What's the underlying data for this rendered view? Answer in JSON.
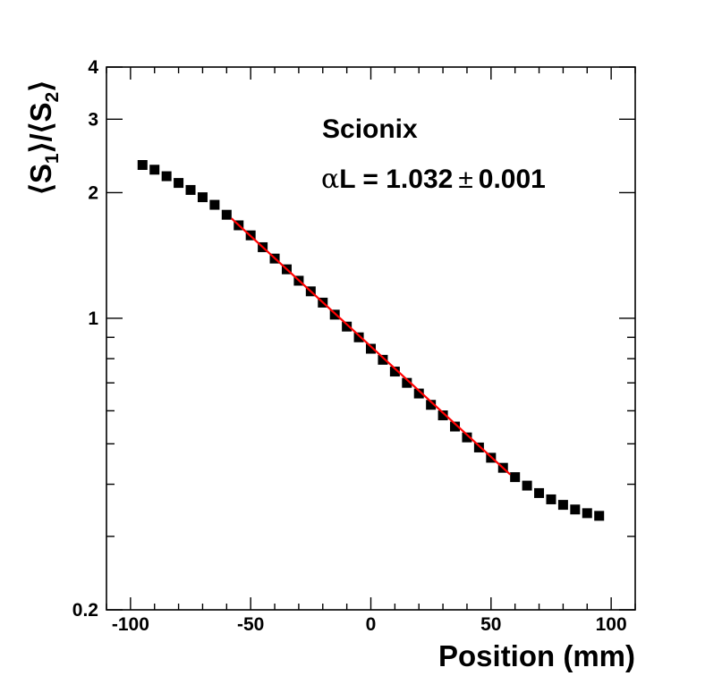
{
  "chart_data": {
    "type": "scatter",
    "xlabel": "Position (mm)",
    "ylabel_parts": [
      "⟨S",
      "1",
      "⟩/⟨S",
      "2",
      "⟩"
    ],
    "xlim": [
      -110,
      110
    ],
    "ylim": [
      0.2,
      4
    ],
    "yscale": "log",
    "grid": false,
    "x_ticks": [
      -100,
      -50,
      0,
      50,
      100
    ],
    "x_tick_labels": [
      "-100",
      "-50",
      "0",
      "50",
      "100"
    ],
    "y_ticks": [
      0.2,
      1,
      2,
      3,
      4
    ],
    "y_tick_labels": [
      "0.2",
      "1",
      "2",
      "3",
      "4"
    ],
    "annotations": {
      "title": "Scionix",
      "fit_alpha": "α",
      "fit_text": "L = 1.032",
      "fit_pm": "±",
      "fit_err": "0.001"
    },
    "series": [
      {
        "marker": "square",
        "color": "#000000",
        "x": [
          -95,
          -90,
          -85,
          -80,
          -75,
          -70,
          -65,
          -60,
          -55,
          -50,
          -45,
          -40,
          -35,
          -30,
          -25,
          -20,
          -15,
          -10,
          -5,
          0,
          5,
          10,
          15,
          20,
          25,
          30,
          35,
          40,
          45,
          50,
          55,
          60,
          65,
          70,
          75,
          80,
          85,
          90,
          95
        ],
        "y": [
          2.33,
          2.27,
          2.19,
          2.11,
          2.03,
          1.95,
          1.87,
          1.77,
          1.67,
          1.58,
          1.48,
          1.39,
          1.31,
          1.23,
          1.16,
          1.09,
          1.02,
          0.955,
          0.9,
          0.845,
          0.795,
          0.745,
          0.7,
          0.66,
          0.62,
          0.585,
          0.55,
          0.518,
          0.49,
          0.463,
          0.438,
          0.416,
          0.397,
          0.381,
          0.368,
          0.357,
          0.348,
          0.341,
          0.336
        ]
      }
    ],
    "fit_line": {
      "color": "#ff0000",
      "x": [
        -58,
        58
      ],
      "y": [
        1.735,
        0.422
      ]
    }
  }
}
